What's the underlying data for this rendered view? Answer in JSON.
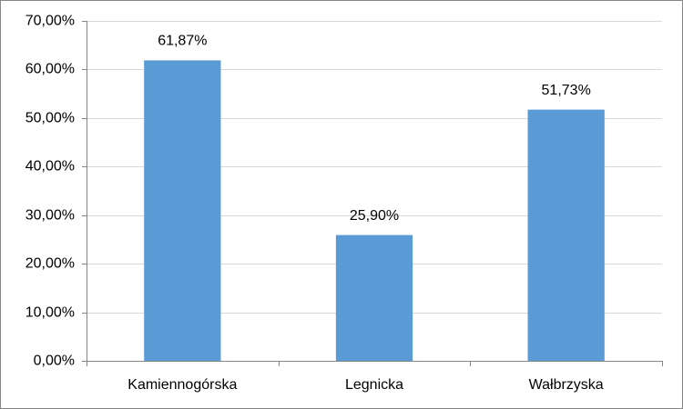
{
  "chart_data": {
    "type": "bar",
    "categories": [
      "Kamiennogórska",
      "Legnicka",
      "Wałbrzyska"
    ],
    "values": [
      61.87,
      25.9,
      51.73
    ],
    "value_labels": [
      "61,87%",
      "25,90%",
      "51,73%"
    ],
    "color": "#5b9bd5",
    "ylim": [
      0,
      70
    ],
    "yticks": [
      {
        "value": 0,
        "label": "0,00%"
      },
      {
        "value": 10,
        "label": "10,00%"
      },
      {
        "value": 20,
        "label": "20,00%"
      },
      {
        "value": 30,
        "label": "30,00%"
      },
      {
        "value": 40,
        "label": "40,00%"
      },
      {
        "value": 50,
        "label": "50,00%"
      },
      {
        "value": 60,
        "label": "60,00%"
      },
      {
        "value": 70,
        "label": "70,00%"
      }
    ],
    "grid": true
  }
}
